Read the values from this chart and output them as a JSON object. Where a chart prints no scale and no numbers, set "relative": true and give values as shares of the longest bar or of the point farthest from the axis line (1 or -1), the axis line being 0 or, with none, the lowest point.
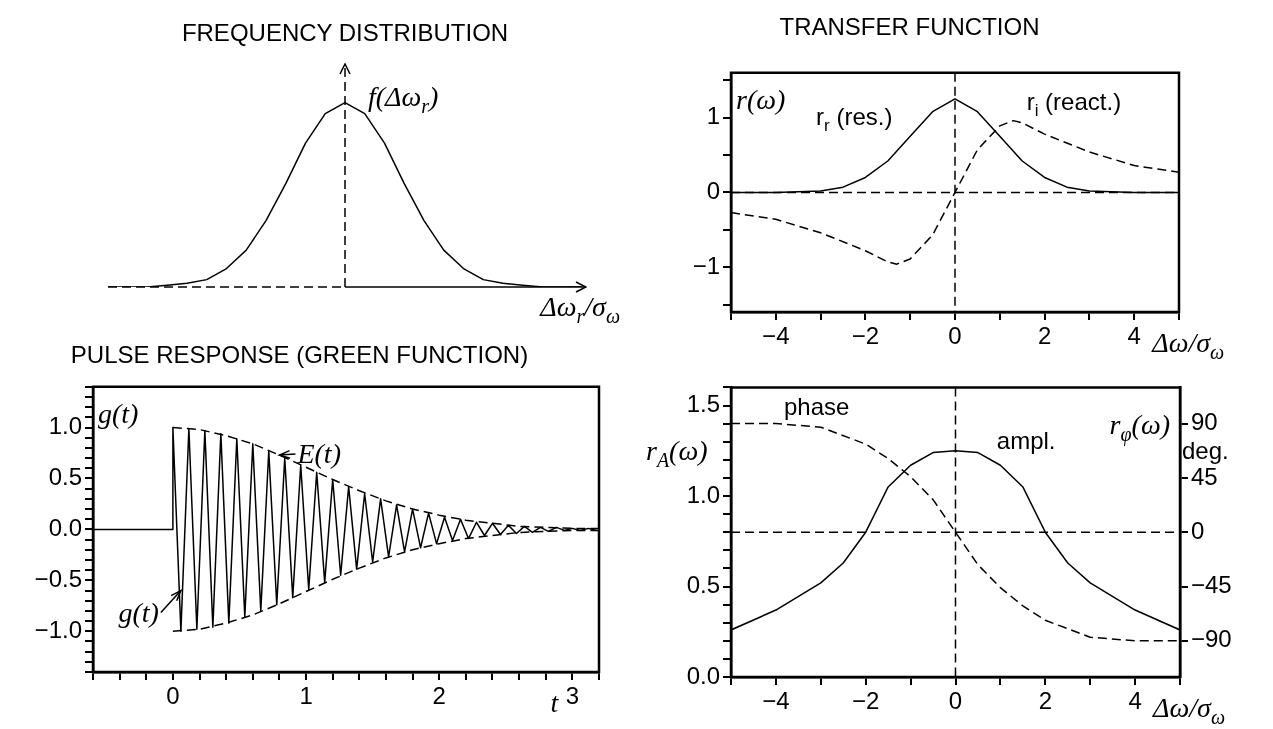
{
  "chart_data": [
    {
      "type": "line",
      "title": "FREQUENCY DISTRIBUTION",
      "xlabel": "Δω$_{r}$/σ$_{ω}$",
      "ylabel": "f(Δω$_{r}$)",
      "relative": true,
      "categories": [
        null,
        null,
        null,
        null,
        null,
        null,
        null,
        null,
        null,
        null,
        null,
        null,
        null,
        null,
        null,
        null,
        null,
        null,
        null,
        null,
        null,
        null,
        null,
        null,
        null
      ],
      "series": [
        {
          "color": "#000000",
          "line_style": "solid",
          "values": [
            0,
            0,
            0,
            0.01,
            0.02,
            0.04,
            0.1,
            0.2,
            0.36,
            0.56,
            0.78,
            0.94,
            1,
            0.94,
            0.78,
            0.56,
            0.36,
            0.2,
            0.1,
            0.04,
            0.02,
            0.01,
            0,
            0,
            0
          ]
        }
      ]
    },
    {
      "type": "line",
      "title": "TRANSFER FUNCTION",
      "xlabel": "Δω/σ$_{ω}$",
      "ylabel": "r(ω)",
      "xlim": [
        -5,
        5
      ],
      "ylim": [
        -1.6,
        1.6
      ],
      "xticks": [
        {
          "value": -5,
          "label": null
        },
        {
          "value": -4,
          "label": "−4"
        },
        {
          "value": -3,
          "label": null
        },
        {
          "value": -2,
          "label": "−2"
        },
        {
          "value": -1,
          "label": null
        },
        0,
        {
          "value": 1,
          "label": null
        },
        2,
        {
          "value": 3,
          "label": null
        },
        4,
        {
          "value": 5,
          "label": null
        }
      ],
      "yticks": [
        {
          "value": -1.5,
          "label": null
        },
        {
          "value": -1,
          "label": "−1"
        },
        {
          "value": -0.5,
          "label": null
        },
        0,
        {
          "value": 0.5,
          "label": null
        },
        1,
        {
          "value": 1.5,
          "label": null
        }
      ],
      "series": [
        {
          "name": "r$_{r}$ (res.)",
          "color": "#000000",
          "line_style": "solid",
          "x": [
            -5,
            -4,
            -3,
            -2.5,
            -2,
            -1.5,
            -1,
            -0.5,
            0,
            0.5,
            1,
            1.5,
            2,
            2.5,
            3,
            4,
            5
          ],
          "values": [
            0,
            0,
            0.02,
            0.07,
            0.2,
            0.42,
            0.75,
            1.08,
            1.25,
            1.08,
            0.75,
            0.42,
            0.2,
            0.07,
            0.02,
            0,
            0
          ]
        },
        {
          "name": "r$_{i}$ (react.)",
          "color": "#000000",
          "line_style": "dashed",
          "x": [
            -5,
            -4,
            -3,
            -2,
            -1.5,
            -1.3,
            -1,
            -0.5,
            0,
            0.5,
            1,
            1.3,
            1.5,
            2,
            3,
            4,
            5
          ],
          "values": [
            -0.27,
            -0.36,
            -0.54,
            -0.78,
            -0.93,
            -0.96,
            -0.89,
            -0.57,
            0,
            0.57,
            0.89,
            0.96,
            0.93,
            0.78,
            0.54,
            0.36,
            0.27
          ]
        }
      ],
      "ref_lines": [
        {
          "axis": "y",
          "value": 0,
          "line_style": "dashed"
        },
        {
          "axis": "x",
          "value": 0,
          "line_style": "dashed"
        }
      ]
    },
    {
      "type": "line",
      "title": "PULSE RESPONSE (GREEN FUNCTION)",
      "xlabel": "t",
      "ylabel": "g(t)",
      "xlim": [
        -0.6,
        3.2
      ],
      "ylim": [
        -1.4,
        1.4
      ],
      "xticks": [
        {
          "value": -0.6,
          "label": null
        },
        {
          "value": -0.4,
          "label": null
        },
        {
          "value": -0.2,
          "label": null
        },
        0,
        {
          "value": 0.2,
          "label": null
        },
        {
          "value": 0.4,
          "label": null
        },
        {
          "value": 0.6,
          "label": null
        },
        {
          "value": 0.8,
          "label": null
        },
        1,
        {
          "value": 1.2,
          "label": null
        },
        {
          "value": 1.4,
          "label": null
        },
        {
          "value": 1.6,
          "label": null
        },
        {
          "value": 1.8,
          "label": null
        },
        2,
        {
          "value": 2.2,
          "label": null
        },
        {
          "value": 2.4,
          "label": null
        },
        {
          "value": 2.6,
          "label": null
        },
        {
          "value": 2.8,
          "label": null
        },
        3,
        {
          "value": 3.2,
          "label": null
        }
      ],
      "yticks": [
        {
          "value": -1.4,
          "label": null
        },
        {
          "value": -1.3,
          "label": null
        },
        {
          "value": -1.2,
          "label": null
        },
        {
          "value": -1.1,
          "label": null
        },
        {
          "value": -1,
          "label": "−1.0"
        },
        {
          "value": -0.9,
          "label": null
        },
        {
          "value": -0.8,
          "label": null
        },
        {
          "value": -0.7,
          "label": null
        },
        {
          "value": -0.6,
          "label": null
        },
        {
          "value": -0.5,
          "label": "−0.5"
        },
        {
          "value": -0.4,
          "label": null
        },
        {
          "value": -0.3,
          "label": null
        },
        {
          "value": -0.2,
          "label": null
        },
        {
          "value": -0.1,
          "label": null
        },
        {
          "value": 0,
          "label": "0.0"
        },
        {
          "value": 0.1,
          "label": null
        },
        {
          "value": 0.2,
          "label": null
        },
        {
          "value": 0.3,
          "label": null
        },
        {
          "value": 0.4,
          "label": null
        },
        0.5,
        {
          "value": 0.6,
          "label": null
        },
        {
          "value": 0.7,
          "label": null
        },
        {
          "value": 0.8,
          "label": null
        },
        {
          "value": 0.9,
          "label": null
        },
        {
          "value": 1,
          "label": "1.0"
        },
        {
          "value": 1.1,
          "label": null
        },
        {
          "value": 1.2,
          "label": null
        },
        {
          "value": 1.3,
          "label": null
        },
        {
          "value": 1.4,
          "label": null
        }
      ],
      "series": [
        {
          "color": "#000000",
          "line_style": "solid",
          "x": [
            -0.6,
            0,
            0,
            0.06,
            0.12,
            0.18,
            0.24,
            0.3,
            0.36,
            0.42,
            0.48,
            0.54,
            0.6,
            0.66,
            0.72,
            0.78,
            0.84,
            0.9,
            0.96,
            1.02,
            1.08,
            1.14,
            1.2,
            1.26,
            1.32,
            1.38,
            1.44,
            1.5,
            1.56,
            1.62,
            1.68,
            1.74,
            1.8,
            1.86,
            1.92,
            1.98,
            2.04,
            2.1,
            2.16,
            2.22,
            2.28,
            2.34,
            2.4,
            2.46,
            2.52,
            2.58,
            2.64,
            2.7,
            2.76,
            2.82,
            2.88,
            2.94,
            3.0,
            3.06,
            3.12,
            3.18
          ],
          "values": [
            0,
            0,
            1,
            -1,
            0.99,
            -0.98,
            0.97,
            -0.96,
            0.94,
            -0.92,
            0.89,
            -0.86,
            0.84,
            -0.8,
            0.77,
            -0.74,
            0.7,
            -0.67,
            0.63,
            -0.59,
            0.56,
            -0.52,
            0.49,
            -0.45,
            0.42,
            -0.39,
            0.35,
            -0.32,
            0.3,
            -0.27,
            0.24,
            -0.22,
            0.2,
            -0.18,
            0.16,
            -0.14,
            0.12,
            -0.11,
            0.1,
            -0.09,
            0.07,
            -0.06,
            0.06,
            -0.05,
            0.04,
            -0.04,
            0.03,
            -0.03,
            0.02,
            -0.02,
            0.02,
            -0.01,
            0.01,
            -0.01,
            0.01,
            -0.01
          ]
        },
        {
          "color": "#000000",
          "line_style": "dashed",
          "x": [
            0,
            0.2,
            0.4,
            0.6,
            0.8,
            1,
            1.2,
            1.4,
            1.6,
            1.8,
            2,
            2.2,
            2.4,
            2.6,
            2.8,
            3,
            3.2
          ],
          "values": [
            1,
            0.98,
            0.92,
            0.84,
            0.73,
            0.61,
            0.49,
            0.38,
            0.28,
            0.2,
            0.14,
            0.09,
            0.06,
            0.03,
            0.02,
            0.01,
            0.01
          ]
        },
        {
          "color": "#000000",
          "line_style": "dashed",
          "x": [
            0,
            0.2,
            0.4,
            0.6,
            0.8,
            1,
            1.2,
            1.4,
            1.6,
            1.8,
            2,
            2.2,
            2.4,
            2.6,
            2.8,
            3,
            3.2
          ],
          "values": [
            -1,
            -0.98,
            -0.92,
            -0.84,
            -0.73,
            -0.61,
            -0.49,
            -0.38,
            -0.28,
            -0.2,
            -0.14,
            -0.09,
            -0.06,
            -0.03,
            -0.02,
            -0.01,
            -0.01
          ]
        }
      ],
      "annotations": [
        {
          "text": "E(t)",
          "x": 0.8,
          "y": 0.73
        },
        {
          "text": "g(t)",
          "x": 0.06,
          "y": -0.6
        }
      ]
    },
    {
      "type": "line",
      "xlabel": "Δω/σ$_{ω}$",
      "ylabel": "r$_{A}$(ω)",
      "y2label": "r$_{φ}$(ω)",
      "xlim": [
        -5,
        5
      ],
      "ylim": [
        0,
        1.6
      ],
      "y2lim": [
        -120,
        120
      ],
      "xticks": [
        {
          "value": -5,
          "label": null
        },
        {
          "value": -4,
          "label": "−4"
        },
        {
          "value": -3,
          "label": null
        },
        {
          "value": -2,
          "label": "−2"
        },
        {
          "value": -1,
          "label": null
        },
        0,
        {
          "value": 1,
          "label": null
        },
        2,
        {
          "value": 3,
          "label": null
        },
        4,
        {
          "value": 5,
          "label": null
        }
      ],
      "yticks": [
        {
          "value": 0,
          "label": "0.0"
        },
        {
          "value": 0.1,
          "label": null
        },
        {
          "value": 0.2,
          "label": null
        },
        {
          "value": 0.3,
          "label": null
        },
        {
          "value": 0.4,
          "label": null
        },
        0.5,
        {
          "value": 0.6,
          "label": null
        },
        {
          "value": 0.7,
          "label": null
        },
        {
          "value": 0.8,
          "label": null
        },
        {
          "value": 0.9,
          "label": null
        },
        {
          "value": 1,
          "label": "1.0"
        },
        {
          "value": 1.1,
          "label": null
        },
        {
          "value": 1.2,
          "label": null
        },
        {
          "value": 1.3,
          "label": null
        },
        {
          "value": 1.4,
          "label": null
        },
        1.5,
        {
          "value": 1.6,
          "label": null
        }
      ],
      "y2ticks": [
        {
          "value": -90,
          "label": "−90"
        },
        {
          "value": -45,
          "label": "−45"
        },
        0,
        45,
        90
      ],
      "series": [
        {
          "name": "ampl.",
          "color": "#000000",
          "line_style": "solid",
          "x": [
            -5,
            -4,
            -3,
            -2.5,
            -2,
            -1.5,
            -1,
            -0.5,
            0,
            0.5,
            1,
            1.5,
            2,
            2.5,
            3,
            4,
            5
          ],
          "values": [
            0.26,
            0.37,
            0.52,
            0.63,
            0.8,
            1.05,
            1.17,
            1.24,
            1.25,
            1.24,
            1.17,
            1.05,
            0.8,
            0.63,
            0.52,
            0.37,
            0.26
          ]
        },
        {
          "name": "phase",
          "color": "#000000",
          "line_style": "dashed",
          "axis": "y2",
          "x": [
            -5,
            -4,
            -3,
            -2,
            -1.5,
            -1,
            -0.5,
            0,
            0.5,
            1,
            1.5,
            2,
            3,
            4,
            5
          ],
          "values": [
            90,
            90,
            87,
            73,
            61,
            46,
            27,
            0,
            -27,
            -46,
            -61,
            -73,
            -87,
            -90,
            -90
          ]
        }
      ],
      "ref_lines": [
        {
          "axis": "y2",
          "value": 0,
          "line_style": "dashed"
        },
        {
          "axis": "x",
          "value": 0,
          "line_style": "dashed"
        }
      ],
      "annotations": [
        "deg."
      ]
    }
  ]
}
